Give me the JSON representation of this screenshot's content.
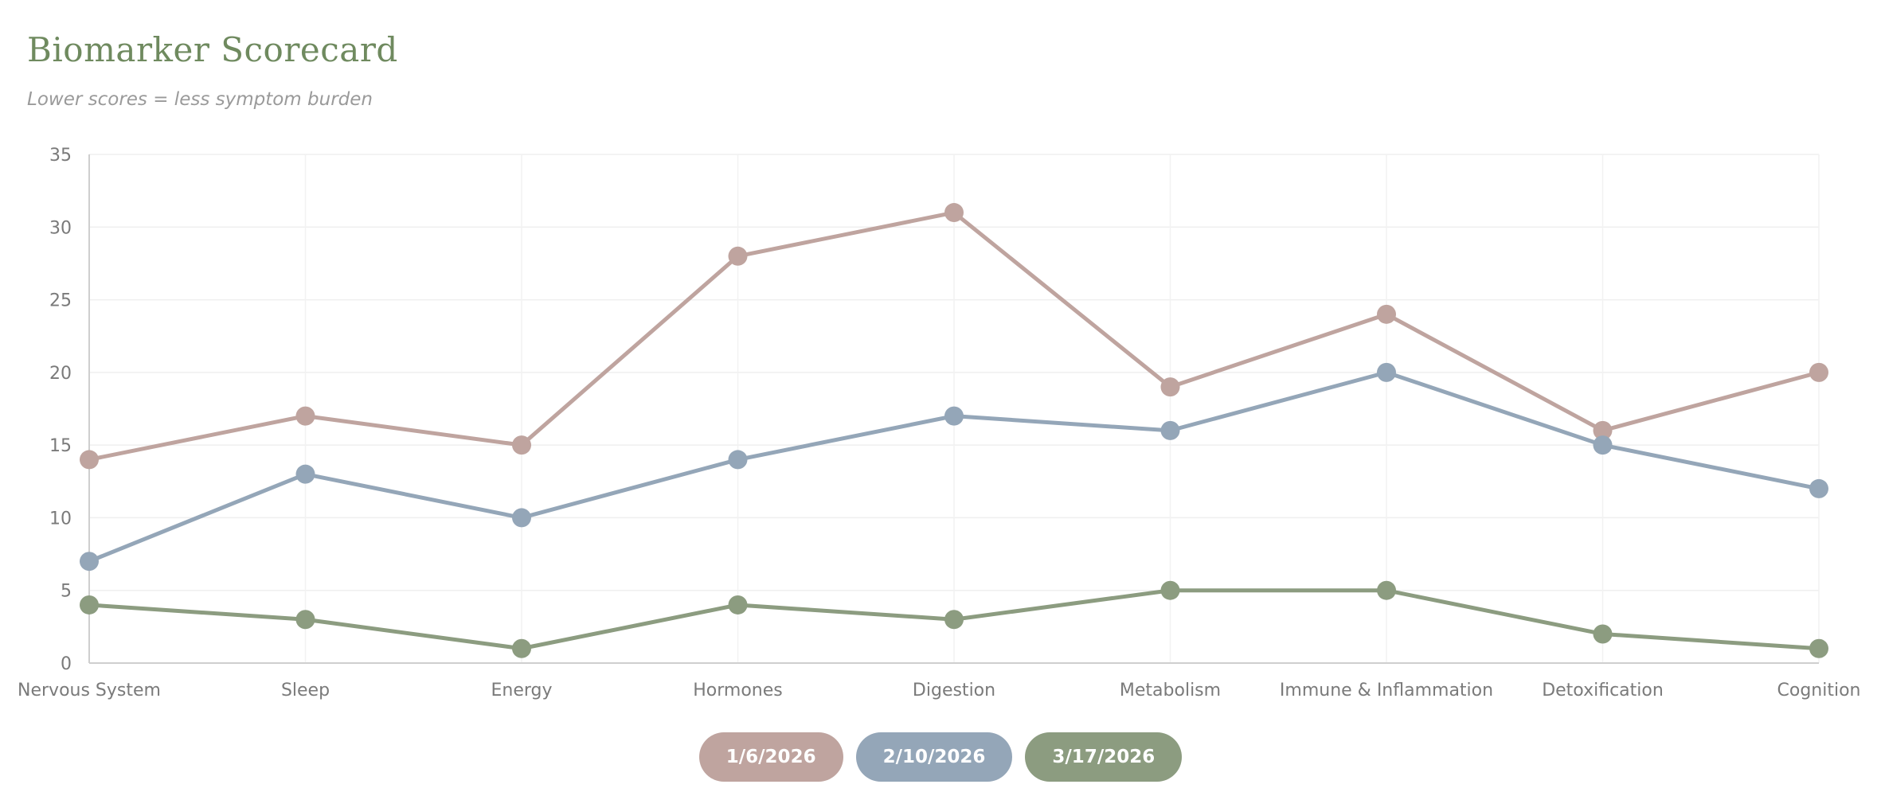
{
  "title": "Biomarker Scorecard",
  "subtitle": "Lower scores = less symptom burden",
  "chart_data": {
    "type": "line",
    "categories": [
      "Nervous System",
      "Sleep",
      "Energy",
      "Hormones",
      "Digestion",
      "Metabolism",
      "Immune & Inflammation",
      "Detoxification",
      "Cognition"
    ],
    "ylim": [
      0,
      35
    ],
    "yticks": [
      0,
      5,
      10,
      15,
      20,
      25,
      30,
      35
    ],
    "grid": true,
    "legend_position": "bottom-center",
    "series": [
      {
        "name": "1/6/2026",
        "color": "#bfa49f",
        "values": [
          14,
          17,
          15,
          28,
          31,
          19,
          24,
          16,
          20
        ]
      },
      {
        "name": "2/10/2026",
        "color": "#94a6b8",
        "values": [
          7,
          13,
          10,
          14,
          17,
          16,
          20,
          15,
          12
        ]
      },
      {
        "name": "3/17/2026",
        "color": "#8c9c80",
        "values": [
          4,
          3,
          1,
          4,
          3,
          5,
          5,
          2,
          1
        ]
      }
    ]
  }
}
